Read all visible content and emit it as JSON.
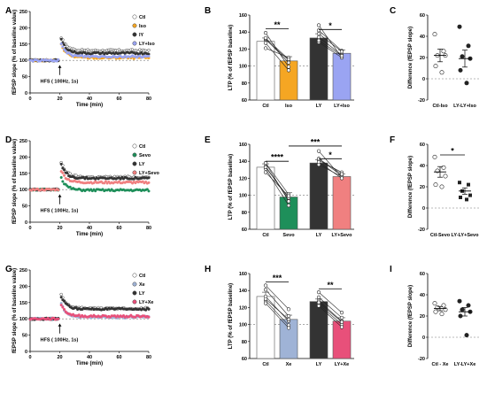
{
  "colors": {
    "ctl": "#ffffff",
    "iso": "#f5a623",
    "ly": "#333333",
    "ly_iso": "#9aa4f2",
    "sevo": "#1e8f5a",
    "ly_sevo": "#f08080",
    "xe": "#9fb3d6",
    "ly_xe": "#e8507a",
    "gray": "#8a8a8a"
  },
  "chart_data": [
    {
      "id": "A",
      "type": "line",
      "row": 0,
      "xlabel": "Time (min)",
      "ylabel": "fEPSP slope (% of baseline value)",
      "xlim": [
        0,
        80
      ],
      "ylim": [
        0,
        250
      ],
      "xticks": [
        0,
        20,
        40,
        60,
        80
      ],
      "yticks": [
        0,
        50,
        100,
        150,
        200,
        250
      ],
      "annotation": "HFS ( 100Hz, 1s)",
      "legend": [
        "Ctl",
        "Iso",
        "lY",
        "LY+Iso"
      ],
      "series": [
        {
          "name": "Ctl",
          "peak": 185,
          "plateau": 130,
          "color": "ctl"
        },
        {
          "name": "Iso",
          "peak": 165,
          "plateau": 108,
          "color": "iso"
        },
        {
          "name": "lY",
          "peak": 178,
          "plateau": 122,
          "color": "ly"
        },
        {
          "name": "LY+Iso",
          "peak": 160,
          "plateau": 112,
          "color": "ly_iso"
        }
      ]
    },
    {
      "id": "B",
      "type": "bar",
      "row": 0,
      "ylabel": "LTP (% of fEPSP baseline)",
      "ylim": [
        60,
        160
      ],
      "yticks": [
        60,
        80,
        100,
        120,
        140,
        160
      ],
      "categories": [
        "Ctl",
        "Iso",
        "LY",
        "LY+Iso"
      ],
      "values": [
        129,
        106,
        133,
        115
      ],
      "errors": [
        4,
        5,
        5,
        4
      ],
      "bar_colors": [
        "ctl",
        "iso",
        "ly",
        "ly_iso"
      ],
      "sig": [
        {
          "from": 0,
          "to": 1,
          "label": "**",
          "y": 144
        },
        {
          "from": 2,
          "to": 3,
          "label": "*",
          "y": 143
        }
      ],
      "pairs": [
        [
          [
            131,
            107
          ],
          [
            139,
            99
          ],
          [
            121,
            110
          ],
          [
            132,
            104
          ],
          [
            133,
            108
          ],
          [
            127,
            95
          ]
        ],
        [
          [
            148,
            110
          ],
          [
            142,
            118
          ],
          [
            134,
            113
          ],
          [
            128,
            110
          ],
          [
            130,
            112
          ],
          [
            138,
            117
          ]
        ]
      ]
    },
    {
      "id": "C",
      "type": "scatter",
      "row": 0,
      "ylabel": "Difference (fEPSP slope)",
      "ylim": [
        -20,
        60
      ],
      "yticks": [
        -20,
        0,
        20,
        40,
        60
      ],
      "categories": [
        "Ctl-Iso",
        "LY-LY+Iso"
      ],
      "groups": [
        {
          "points": [
            42,
            26,
            22,
            22,
            12,
            6
          ],
          "mean": 22,
          "sem": 6
        },
        {
          "points": [
            49,
            31,
            21,
            19,
            8,
            -4
          ],
          "mean": 19,
          "sem": 8
        }
      ]
    },
    {
      "id": "D",
      "type": "line",
      "row": 1,
      "xlabel": "Time (min)",
      "ylabel": "fEPSP slope (% of baseline value)",
      "xlim": [
        0,
        80
      ],
      "ylim": [
        0,
        250
      ],
      "xticks": [
        0,
        20,
        40,
        60,
        80
      ],
      "yticks": [
        0,
        50,
        100,
        150,
        200,
        250
      ],
      "annotation": "HFS ( 100Hz, 1s)",
      "legend": [
        "Ctl",
        "Sevo",
        "LY",
        "LY+Sevo"
      ],
      "series": [
        {
          "name": "Ctl",
          "peak": 200,
          "plateau": 138,
          "color": "ctl"
        },
        {
          "name": "Sevo",
          "peak": 150,
          "plateau": 98,
          "color": "sevo"
        },
        {
          "name": "LY",
          "peak": 190,
          "plateau": 135,
          "color": "ly"
        },
        {
          "name": "LY+Sevo",
          "peak": 170,
          "plateau": 122,
          "color": "ly_sevo"
        }
      ]
    },
    {
      "id": "E",
      "type": "bar",
      "row": 1,
      "ylabel": "LTP (% of fEPSP baseline)",
      "ylim": [
        60,
        160
      ],
      "yticks": [
        60,
        80,
        100,
        120,
        140,
        160
      ],
      "categories": [
        "Ctl",
        "Sevo",
        "LY",
        "LY+Sevo"
      ],
      "values": [
        133,
        98,
        138,
        122
      ],
      "errors": [
        4,
        5,
        4,
        3
      ],
      "bar_colors": [
        "ctl",
        "sevo",
        "ly",
        "ly_sevo"
      ],
      "sig": [
        {
          "from": 0,
          "to": 1,
          "label": "****",
          "y": 140
        },
        {
          "from": 2,
          "to": 3,
          "label": "*",
          "y": 143
        },
        {
          "from": 1,
          "to": 3,
          "label": "***",
          "y": 158
        }
      ],
      "pairs": [
        [
          [
            138,
            101
          ],
          [
            134,
            95
          ],
          [
            131,
            88
          ],
          [
            133,
            97
          ],
          [
            138,
            93
          ],
          [
            127,
            99
          ]
        ],
        [
          [
            152,
            121
          ],
          [
            143,
            123
          ],
          [
            141,
            127
          ],
          [
            136,
            122
          ],
          [
            139,
            120
          ],
          [
            143,
            125
          ]
        ]
      ]
    },
    {
      "id": "F",
      "type": "scatter",
      "row": 1,
      "ylabel": "Difference (fEPSP slope)",
      "ylim": [
        -20,
        60
      ],
      "yticks": [
        -20,
        0,
        20,
        40,
        60
      ],
      "categories": [
        "Ctl-Sevo",
        "LY-LY+Sevo"
      ],
      "sig": [
        {
          "from": 0,
          "to": 1,
          "label": "*",
          "y": 50
        }
      ],
      "groups": [
        {
          "points": [
            48,
            38,
            35,
            30,
            22,
            20
          ],
          "mean": 34,
          "sem": 5
        },
        {
          "points": [
            24,
            22,
            16,
            12,
            10,
            8
          ],
          "mean": 16,
          "sem": 3
        }
      ]
    },
    {
      "id": "G",
      "type": "line",
      "row": 2,
      "xlabel": "Time (min)",
      "ylabel": "fEPSP slope (% of baseline value)",
      "xlim": [
        0,
        80
      ],
      "ylim": [
        0,
        250
      ],
      "xticks": [
        0,
        20,
        40,
        60,
        80
      ],
      "yticks": [
        0,
        50,
        100,
        150,
        200,
        250
      ],
      "annotation": "HFS ( 100Hz, 1s)",
      "legend": [
        "Ctl",
        "Xe",
        "LY",
        "LY+Xe"
      ],
      "series": [
        {
          "name": "Ctl",
          "peak": 190,
          "plateau": 132,
          "color": "ctl"
        },
        {
          "name": "Xe",
          "peak": 160,
          "plateau": 105,
          "color": "xe"
        },
        {
          "name": "LY",
          "peak": 182,
          "plateau": 130,
          "color": "ly"
        },
        {
          "name": "LY+Xe",
          "peak": 155,
          "plateau": 108,
          "color": "ly_xe"
        }
      ]
    },
    {
      "id": "H",
      "type": "bar",
      "row": 2,
      "ylabel": "LTP (% of fEPSP baseline)",
      "ylim": [
        60,
        160
      ],
      "yticks": [
        60,
        80,
        100,
        120,
        140,
        160
      ],
      "categories": [
        "Ctl",
        "Xe",
        "LY",
        "LY+Xe"
      ],
      "values": [
        133,
        106,
        127,
        104
      ],
      "errors": [
        5,
        5,
        3,
        4
      ],
      "bar_colors": [
        "ctl",
        "xe",
        "ly",
        "ly_xe"
      ],
      "sig": [
        {
          "from": 0,
          "to": 1,
          "label": "***",
          "y": 150
        },
        {
          "from": 2,
          "to": 3,
          "label": "**",
          "y": 142
        }
      ],
      "pairs": [
        [
          [
            146,
            118
          ],
          [
            141,
            110
          ],
          [
            133,
            104
          ],
          [
            128,
            99
          ],
          [
            125,
            96
          ],
          [
            130,
            106
          ]
        ],
        [
          [
            138,
            114
          ],
          [
            132,
            108
          ],
          [
            128,
            104
          ],
          [
            124,
            100
          ],
          [
            122,
            97
          ],
          [
            126,
            103
          ]
        ]
      ]
    },
    {
      "id": "I",
      "type": "scatter",
      "row": 2,
      "ylabel": "Difference (fEPSP slope)",
      "ylim": [
        -20,
        60
      ],
      "yticks": [
        -20,
        0,
        20,
        40,
        60
      ],
      "categories": [
        "Ctl - Xe",
        "LY-LY+Xe"
      ],
      "groups": [
        {
          "points": [
            32,
            30,
            28,
            26,
            24,
            22
          ],
          "mean": 27,
          "sem": 2
        },
        {
          "points": [
            34,
            30,
            26,
            24,
            20,
            2
          ],
          "mean": 24,
          "sem": 4
        }
      ]
    }
  ]
}
